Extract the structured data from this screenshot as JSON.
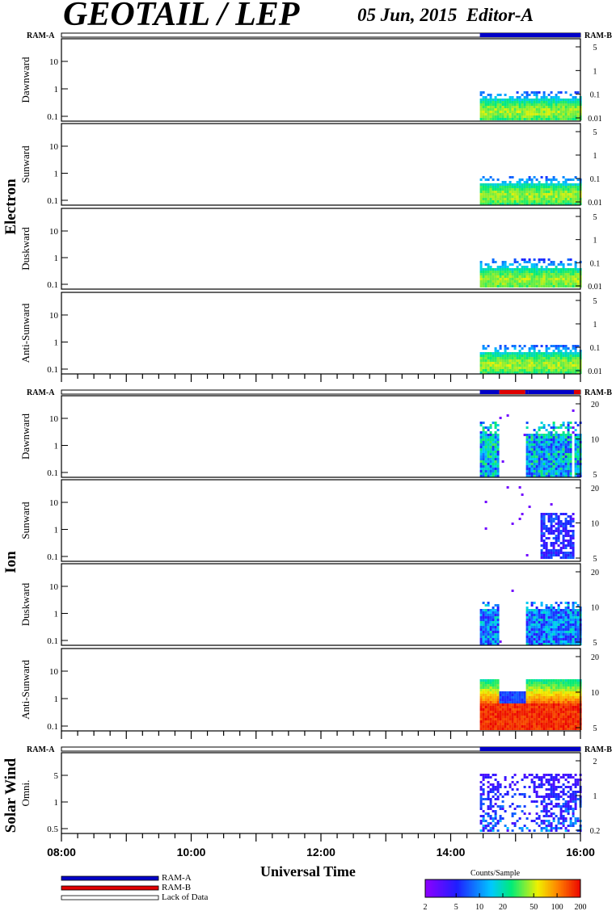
{
  "header": {
    "title": "GEOTAIL / LEP",
    "date": "05 Jun, 2015",
    "editor": "Editor-A"
  },
  "chart_data": {
    "type": "heatmap",
    "xlabel": "Universal Time",
    "xticks": [
      "08:00",
      "10:00",
      "12:00",
      "14:00",
      "16:00"
    ],
    "x_range_hours": [
      8,
      16
    ],
    "data_start_hour": 14.45,
    "groups": [
      {
        "name": "Electron",
        "ram_left": "RAM-A",
        "ram_right": "RAM-B",
        "ram_segments": [
          {
            "from": 14.45,
            "to": 16.0,
            "mode": "RAM-A"
          }
        ],
        "panels": [
          {
            "label": "Dawnward",
            "left_ticks": [
              "10",
              "1",
              "0.1"
            ],
            "right_ticks": [
              "5",
              "1",
              "0.1",
              "0.01"
            ]
          },
          {
            "label": "Sunward",
            "left_ticks": [
              "10",
              "1",
              "0.1"
            ],
            "right_ticks": [
              "5",
              "1",
              "0.1",
              "0.01"
            ]
          },
          {
            "label": "Duskward",
            "left_ticks": [
              "10",
              "1",
              "0.1"
            ],
            "right_ticks": [
              "5",
              "1",
              "0.1",
              "0.01"
            ]
          },
          {
            "label": "Anti-Sunward",
            "left_ticks": [
              "10",
              "1",
              "0.1"
            ],
            "right_ticks": [
              "5",
              "1",
              "0.1",
              "0.01"
            ]
          }
        ]
      },
      {
        "name": "Ion",
        "ram_left": "RAM-A",
        "ram_right": "RAM-B",
        "ram_segments": [
          {
            "from": 14.45,
            "to": 14.75,
            "mode": "RAM-A"
          },
          {
            "from": 14.75,
            "to": 15.15,
            "mode": "RAM-B"
          },
          {
            "from": 15.15,
            "to": 15.2,
            "mode": "RAM-A"
          },
          {
            "from": 15.2,
            "to": 15.9,
            "mode": "RAM-A"
          },
          {
            "from": 15.9,
            "to": 16.0,
            "mode": "RAM-B"
          }
        ],
        "panels": [
          {
            "label": "Dawnward",
            "left_ticks": [
              "10",
              "1",
              "0.1"
            ],
            "right_ticks": [
              "20",
              "10",
              "5"
            ]
          },
          {
            "label": "Sunward",
            "left_ticks": [
              "10",
              "1",
              "0.1"
            ],
            "right_ticks": [
              "20",
              "10",
              "5"
            ]
          },
          {
            "label": "Duskward",
            "left_ticks": [
              "10",
              "1",
              "0.1"
            ],
            "right_ticks": [
              "20",
              "10",
              "5"
            ]
          },
          {
            "label": "Anti-Sunward",
            "left_ticks": [
              "10",
              "1",
              "0.1"
            ],
            "right_ticks": [
              "20",
              "10",
              "5"
            ]
          }
        ]
      },
      {
        "name": "Solar Wind",
        "ram_left": "RAM-A",
        "ram_right": "RAM-B",
        "ram_segments": [
          {
            "from": 14.45,
            "to": 16.0,
            "mode": "RAM-A"
          }
        ],
        "panels": [
          {
            "label": "Omni.",
            "left_ticks": [
              "5",
              "1",
              "0.5"
            ],
            "right_ticks": [
              "2",
              "1",
              "0.2"
            ]
          }
        ]
      }
    ],
    "legend": [
      {
        "label": "RAM-A",
        "color": "#0000c8"
      },
      {
        "label": "RAM-B",
        "color": "#e00000"
      },
      {
        "label": "Lack of Data",
        "color": "#ffffff"
      }
    ],
    "colorbar": {
      "title": "Counts/Sample",
      "ticks": [
        "2",
        "5",
        "10",
        "20",
        "50",
        "100",
        "200"
      ],
      "values": [
        2,
        5,
        10,
        20,
        50,
        100,
        200
      ]
    }
  }
}
